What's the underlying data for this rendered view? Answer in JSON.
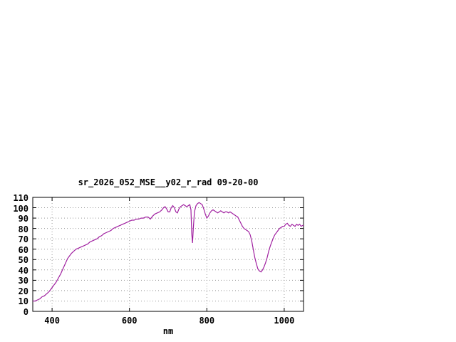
{
  "chart_data": {
    "type": "line",
    "title": "sr_2026_052_MSE__y02_r_rad 09-20-00",
    "xlabel": "nm",
    "ylabel": "",
    "xlim": [
      350,
      1050
    ],
    "ylim": [
      0,
      110
    ],
    "xticks": [
      400,
      600,
      800,
      1000
    ],
    "yticks": [
      0,
      10,
      20,
      30,
      40,
      50,
      60,
      70,
      80,
      90,
      100,
      110
    ],
    "grid": true,
    "legend": "none",
    "line_color": "#a020a0",
    "border_color": "#000000",
    "grid_color": "#999999",
    "series": [
      {
        "name": "sr_2026_052_MSE__y02_r_rad",
        "points": [
          [
            350,
            10
          ],
          [
            356,
            10
          ],
          [
            362,
            11
          ],
          [
            368,
            12
          ],
          [
            374,
            14
          ],
          [
            380,
            15
          ],
          [
            386,
            17
          ],
          [
            392,
            19
          ],
          [
            398,
            22
          ],
          [
            404,
            25
          ],
          [
            410,
            28
          ],
          [
            416,
            32
          ],
          [
            422,
            36
          ],
          [
            428,
            41
          ],
          [
            434,
            46
          ],
          [
            440,
            51
          ],
          [
            446,
            54
          ],
          [
            450,
            56
          ],
          [
            456,
            58
          ],
          [
            462,
            60
          ],
          [
            468,
            61
          ],
          [
            474,
            62
          ],
          [
            480,
            63
          ],
          [
            486,
            64
          ],
          [
            492,
            65
          ],
          [
            498,
            67
          ],
          [
            504,
            68
          ],
          [
            510,
            69
          ],
          [
            516,
            70
          ],
          [
            522,
            72
          ],
          [
            528,
            73
          ],
          [
            534,
            75
          ],
          [
            540,
            76
          ],
          [
            546,
            77
          ],
          [
            552,
            78
          ],
          [
            558,
            80
          ],
          [
            564,
            81
          ],
          [
            570,
            82
          ],
          [
            576,
            83
          ],
          [
            582,
            84
          ],
          [
            588,
            85
          ],
          [
            594,
            86
          ],
          [
            600,
            87
          ],
          [
            606,
            88
          ],
          [
            612,
            88
          ],
          [
            618,
            89
          ],
          [
            624,
            89
          ],
          [
            630,
            90
          ],
          [
            636,
            90
          ],
          [
            642,
            91
          ],
          [
            648,
            91
          ],
          [
            654,
            89
          ],
          [
            660,
            92
          ],
          [
            666,
            94
          ],
          [
            672,
            95
          ],
          [
            678,
            96
          ],
          [
            684,
            98
          ],
          [
            688,
            100
          ],
          [
            692,
            101
          ],
          [
            696,
            99
          ],
          [
            700,
            96
          ],
          [
            704,
            96
          ],
          [
            708,
            100
          ],
          [
            712,
            102
          ],
          [
            716,
            100
          ],
          [
            720,
            96
          ],
          [
            724,
            95
          ],
          [
            728,
            99
          ],
          [
            732,
            101
          ],
          [
            736,
            102
          ],
          [
            740,
            103
          ],
          [
            744,
            102
          ],
          [
            748,
            101
          ],
          [
            752,
            102
          ],
          [
            756,
            103
          ],
          [
            759,
            98
          ],
          [
            761,
            75
          ],
          [
            763,
            66
          ],
          [
            765,
            80
          ],
          [
            768,
            96
          ],
          [
            772,
            102
          ],
          [
            776,
            104
          ],
          [
            780,
            105
          ],
          [
            784,
            104
          ],
          [
            788,
            103
          ],
          [
            792,
            99
          ],
          [
            796,
            94
          ],
          [
            800,
            90
          ],
          [
            804,
            92
          ],
          [
            808,
            95
          ],
          [
            812,
            97
          ],
          [
            816,
            98
          ],
          [
            820,
            97
          ],
          [
            824,
            96
          ],
          [
            828,
            95
          ],
          [
            832,
            96
          ],
          [
            836,
            97
          ],
          [
            840,
            96
          ],
          [
            844,
            95
          ],
          [
            848,
            96
          ],
          [
            852,
            96
          ],
          [
            856,
            95
          ],
          [
            860,
            96
          ],
          [
            864,
            95
          ],
          [
            868,
            94
          ],
          [
            872,
            93
          ],
          [
            876,
            92
          ],
          [
            880,
            91
          ],
          [
            884,
            88
          ],
          [
            888,
            85
          ],
          [
            892,
            82
          ],
          [
            896,
            80
          ],
          [
            900,
            79
          ],
          [
            904,
            78
          ],
          [
            908,
            77
          ],
          [
            912,
            74
          ],
          [
            916,
            68
          ],
          [
            920,
            60
          ],
          [
            924,
            52
          ],
          [
            928,
            46
          ],
          [
            932,
            41
          ],
          [
            936,
            39
          ],
          [
            940,
            38
          ],
          [
            944,
            40
          ],
          [
            948,
            43
          ],
          [
            952,
            47
          ],
          [
            956,
            52
          ],
          [
            960,
            58
          ],
          [
            964,
            63
          ],
          [
            968,
            67
          ],
          [
            972,
            71
          ],
          [
            976,
            74
          ],
          [
            980,
            76
          ],
          [
            984,
            78
          ],
          [
            988,
            80
          ],
          [
            992,
            81
          ],
          [
            996,
            82
          ],
          [
            1000,
            82
          ],
          [
            1004,
            84
          ],
          [
            1008,
            85
          ],
          [
            1012,
            83
          ],
          [
            1016,
            82
          ],
          [
            1020,
            84
          ],
          [
            1024,
            83
          ],
          [
            1028,
            82
          ],
          [
            1032,
            84
          ],
          [
            1036,
            83
          ],
          [
            1040,
            84
          ],
          [
            1044,
            82
          ],
          [
            1048,
            83
          ],
          [
            1050,
            83
          ]
        ]
      }
    ]
  }
}
